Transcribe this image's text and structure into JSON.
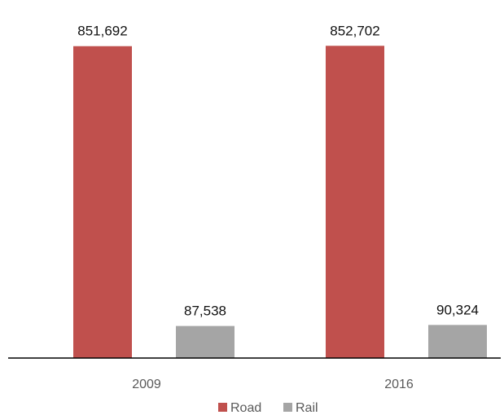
{
  "chart_data": {
    "type": "bar",
    "categories": [
      "2009",
      "2016"
    ],
    "series": [
      {
        "name": "Road",
        "values": [
          851692,
          852702
        ],
        "labels": [
          "851,692",
          "852,702"
        ]
      },
      {
        "name": "Rail",
        "values": [
          87538,
          90324
        ],
        "labels": [
          "87,538",
          "90,324"
        ]
      }
    ],
    "title": "",
    "xlabel": "",
    "ylabel": "",
    "ylim": [
      0,
      1000000
    ],
    "grid": false,
    "legend_position": "bottom-center",
    "colors": {
      "Road": "#c0504d",
      "Rail": "#a5a5a5",
      "axis": "#000000"
    }
  }
}
